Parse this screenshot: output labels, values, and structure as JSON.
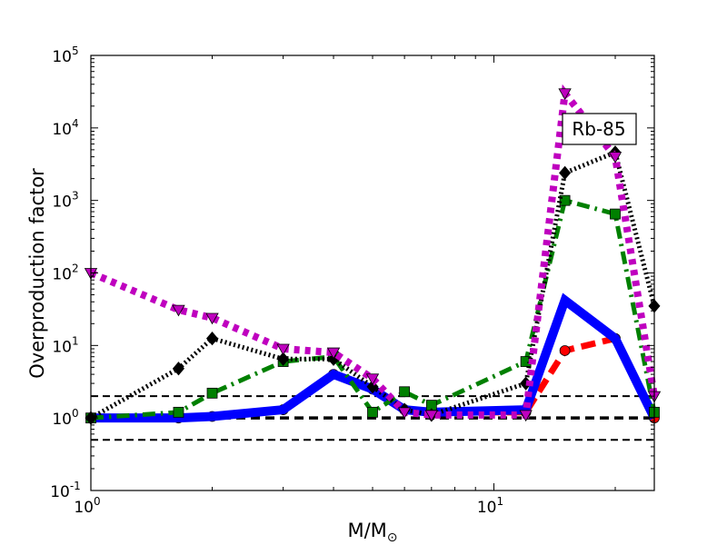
{
  "chart_data": {
    "type": "line",
    "xscale": "log",
    "yscale": "log",
    "xlim": [
      1,
      25
    ],
    "ylim": [
      0.1,
      100000
    ],
    "xlabel": "M/M",
    "xlabel_sub": "⊙",
    "ylabel": "Overproduction factor",
    "annotation": "Rb-85",
    "grid": false,
    "x_ticks": [
      {
        "base": "10",
        "exp": "0",
        "value": 1
      },
      {
        "base": "10",
        "exp": "1",
        "value": 10
      }
    ],
    "y_ticks": [
      {
        "base": "10",
        "exp": "-1",
        "value": 0.1
      },
      {
        "base": "10",
        "exp": "0",
        "value": 1
      },
      {
        "base": "10",
        "exp": "1",
        "value": 10
      },
      {
        "base": "10",
        "exp": "2",
        "value": 100
      },
      {
        "base": "10",
        "exp": "3",
        "value": 1000
      },
      {
        "base": "10",
        "exp": "4",
        "value": 10000
      },
      {
        "base": "10",
        "exp": "5",
        "value": 100000
      }
    ],
    "reference_lines": [
      {
        "y": 2,
        "style": "dashed",
        "color": "#000000"
      },
      {
        "y": 1,
        "style": "dashed-bold",
        "color": "#000000"
      },
      {
        "y": 0.5,
        "style": "dashed",
        "color": "#000000"
      }
    ],
    "series": [
      {
        "color": "#ff0000",
        "style": "dashed",
        "marker": "circle",
        "points": [
          [
            1,
            1.0
          ],
          [
            1.65,
            1.0
          ],
          [
            2,
            1.05
          ],
          [
            3,
            1.3
          ],
          [
            4,
            4.0
          ],
          [
            5,
            2.5
          ],
          [
            6,
            1.3
          ],
          [
            7,
            1.2
          ],
          [
            12,
            1.2
          ],
          [
            15,
            8.5
          ],
          [
            20,
            12.5
          ],
          [
            25,
            1.0
          ]
        ]
      },
      {
        "color": "#0000ff",
        "style": "solid",
        "marker": "none",
        "points": [
          [
            1,
            1.0
          ],
          [
            1.65,
            1.0
          ],
          [
            2,
            1.05
          ],
          [
            3,
            1.3
          ],
          [
            4,
            4.0
          ],
          [
            5,
            2.5
          ],
          [
            6,
            1.3
          ],
          [
            7,
            1.2
          ],
          [
            12,
            1.3
          ],
          [
            15,
            42
          ],
          [
            20,
            12.5
          ],
          [
            25,
            1.0
          ]
        ]
      },
      {
        "color": "#008000",
        "style": "dashdot",
        "marker": "square",
        "points": [
          [
            1,
            1.0
          ],
          [
            1.65,
            1.2
          ],
          [
            2,
            2.2
          ],
          [
            3,
            6.0
          ],
          [
            4,
            7.0
          ],
          [
            5,
            1.2
          ],
          [
            6,
            2.3
          ],
          [
            7,
            1.5
          ],
          [
            12,
            6.0
          ],
          [
            15,
            1000
          ],
          [
            20,
            650
          ],
          [
            25,
            1.2
          ]
        ]
      },
      {
        "color": "#000000",
        "style": "dotted",
        "marker": "diamond",
        "points": [
          [
            1,
            1.0
          ],
          [
            1.65,
            4.8
          ],
          [
            2,
            12.5
          ],
          [
            3,
            6.5
          ],
          [
            4,
            6.5
          ],
          [
            5,
            2.7
          ],
          [
            6,
            1.3
          ],
          [
            7,
            1.1
          ],
          [
            12,
            3.0
          ],
          [
            15,
            2400
          ],
          [
            20,
            4600
          ],
          [
            25,
            35
          ]
        ]
      },
      {
        "color": "#bf00bf",
        "style": "dotted-thick",
        "marker": "triangle-down",
        "points": [
          [
            1,
            100
          ],
          [
            1.65,
            31
          ],
          [
            2,
            24
          ],
          [
            3,
            9.0
          ],
          [
            4,
            8.0
          ],
          [
            5,
            3.5
          ],
          [
            6,
            1.2
          ],
          [
            7,
            1.1
          ],
          [
            12,
            1.1
          ],
          [
            15,
            30000
          ],
          [
            20,
            4000
          ],
          [
            25,
            2.0
          ]
        ]
      }
    ]
  }
}
